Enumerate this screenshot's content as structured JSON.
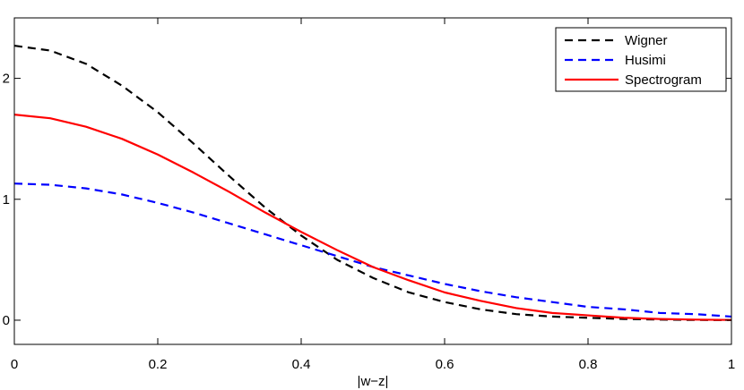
{
  "chart_data": {
    "type": "line",
    "xlabel": "|w−z|",
    "ylabel": "",
    "xlim": [
      0,
      1
    ],
    "ylim": [
      -0.2,
      2.5
    ],
    "x_ticks": [
      0,
      0.2,
      0.4,
      0.6,
      0.8,
      1
    ],
    "x_tick_labels": [
      "0",
      "0.2",
      "0.4",
      "0.6",
      "0.8",
      "1"
    ],
    "y_ticks": [
      0,
      1,
      2
    ],
    "y_tick_labels": [
      "0",
      "1",
      "2"
    ],
    "grid": false,
    "legend_position": "top-right",
    "x": [
      0,
      0.05,
      0.1,
      0.15,
      0.2,
      0.25,
      0.3,
      0.35,
      0.4,
      0.45,
      0.5,
      0.55,
      0.6,
      0.65,
      0.7,
      0.75,
      0.8,
      0.85,
      0.9,
      0.95,
      1.0
    ],
    "series": [
      {
        "name": "Wigner",
        "color": "#000000",
        "style": "dashed",
        "values": [
          2.27,
          2.23,
          2.12,
          1.94,
          1.72,
          1.46,
          1.19,
          0.93,
          0.7,
          0.5,
          0.35,
          0.23,
          0.15,
          0.09,
          0.05,
          0.03,
          0.02,
          0.01,
          0.005,
          0.002,
          0.001
        ]
      },
      {
        "name": "Husimi",
        "color": "#0000ff",
        "style": "dashed",
        "values": [
          1.13,
          1.12,
          1.09,
          1.04,
          0.97,
          0.89,
          0.8,
          0.71,
          0.62,
          0.53,
          0.44,
          0.37,
          0.3,
          0.24,
          0.19,
          0.15,
          0.11,
          0.09,
          0.06,
          0.05,
          0.03
        ]
      },
      {
        "name": "Spectrogram",
        "color": "#ff0000",
        "style": "solid",
        "values": [
          1.7,
          1.67,
          1.6,
          1.5,
          1.37,
          1.22,
          1.06,
          0.89,
          0.73,
          0.58,
          0.44,
          0.33,
          0.23,
          0.16,
          0.1,
          0.06,
          0.04,
          0.02,
          0.01,
          0.005,
          0.002
        ]
      }
    ]
  }
}
